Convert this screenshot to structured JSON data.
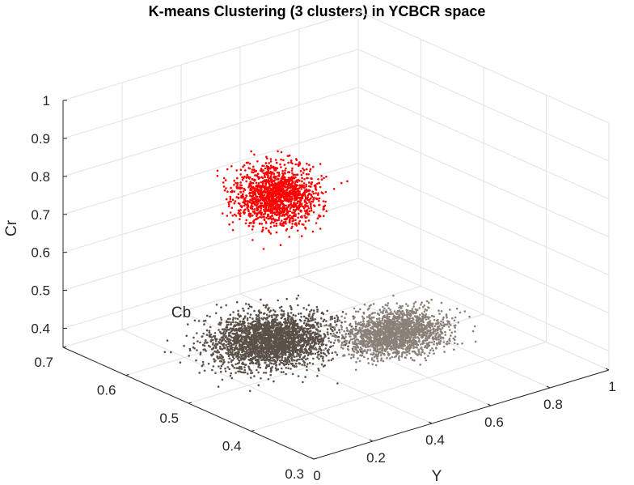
{
  "chart_data": {
    "type": "scatter",
    "projection": "3d",
    "title": "K-means Clustering (3 clusters) in YCBCR space",
    "xlabel": "Y",
    "ylabel": "Cb",
    "zlabel": "Cr",
    "xlim": [
      0,
      1
    ],
    "ylim": [
      0.3,
      0.7
    ],
    "zlim": [
      0.35,
      1
    ],
    "x_ticks": [
      "0",
      "0.2",
      "0.4",
      "0.6",
      "0.8",
      "1"
    ],
    "y_ticks": [
      "0.3",
      "0.4",
      "0.5",
      "0.6",
      "0.7"
    ],
    "z_ticks": [
      "0.4",
      "0.5",
      "0.6",
      "0.7",
      "0.8",
      "0.9",
      "1"
    ],
    "grid": true,
    "series": [
      {
        "color": "#5a5148",
        "center": [
          0.28,
          0.5,
          0.45
        ],
        "spread": [
          0.12,
          0.04,
          0.03
        ],
        "x_range": [
          0.05,
          0.6
        ],
        "y_range": [
          0.4,
          0.6
        ],
        "z_range": [
          0.38,
          0.55
        ]
      },
      {
        "color": "#8a8178",
        "center": [
          0.62,
          0.46,
          0.42
        ],
        "spread": [
          0.1,
          0.03,
          0.03
        ],
        "x_range": [
          0.4,
          0.9
        ],
        "y_range": [
          0.38,
          0.55
        ],
        "z_range": [
          0.38,
          0.52
        ]
      },
      {
        "color": "#ff0000",
        "center": [
          0.55,
          0.62,
          0.68
        ],
        "spread": [
          0.08,
          0.03,
          0.05
        ],
        "x_range": [
          0.45,
          0.72
        ],
        "y_range": [
          0.55,
          0.7
        ],
        "z_range": [
          0.56,
          0.82
        ]
      }
    ]
  }
}
